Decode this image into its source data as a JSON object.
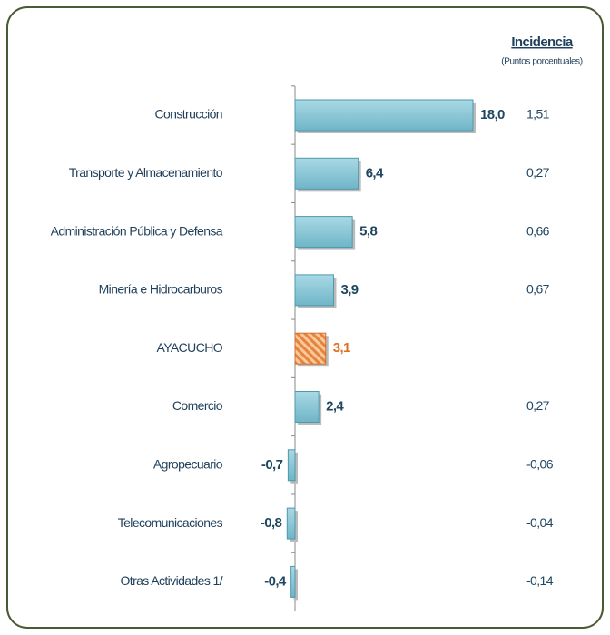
{
  "chart_data": {
    "type": "bar",
    "orientation": "horizontal",
    "header": "Incidencia",
    "subheader": "(Puntos porcentuales)",
    "categories": [
      "Construcción",
      "Transporte y Almacenamiento",
      "Administración Pública y Defensa",
      "Minería e Hidrocarburos",
      "AYACUCHO",
      "Comercio",
      "Agropecuario",
      "Telecomunicaciones",
      "Otras Actividades 1/"
    ],
    "values": [
      18.0,
      6.4,
      5.8,
      3.9,
      3.1,
      2.4,
      -0.7,
      -0.8,
      -0.4
    ],
    "value_labels": [
      "18,0",
      "6,4",
      "5,8",
      "3,9",
      "3,1",
      "2,4",
      "-0,7",
      "-0,8",
      "-0,4"
    ],
    "colors": [
      "#86c6d6",
      "#86c6d6",
      "#86c6d6",
      "#86c6d6",
      "#e8843a",
      "#86c6d6",
      "#86c6d6",
      "#86c6d6",
      "#86c6d6"
    ],
    "label_colors": [
      "#1f4760",
      "#1f4760",
      "#1f4760",
      "#1f4760",
      "#e07020",
      "#1f4760",
      "#1f4760",
      "#1f4760",
      "#1f4760"
    ],
    "hatched": [
      false,
      false,
      false,
      false,
      true,
      false,
      false,
      false,
      false
    ],
    "incidence": {
      "values": [
        1.51,
        0.27,
        0.66,
        0.67,
        null,
        0.27,
        -0.06,
        -0.04,
        -0.14
      ],
      "value_labels": [
        "1,51",
        "0,27",
        "0,66",
        "0,67",
        null,
        "0,27",
        "-0,06",
        "-0,04",
        "-0,14"
      ]
    }
  }
}
